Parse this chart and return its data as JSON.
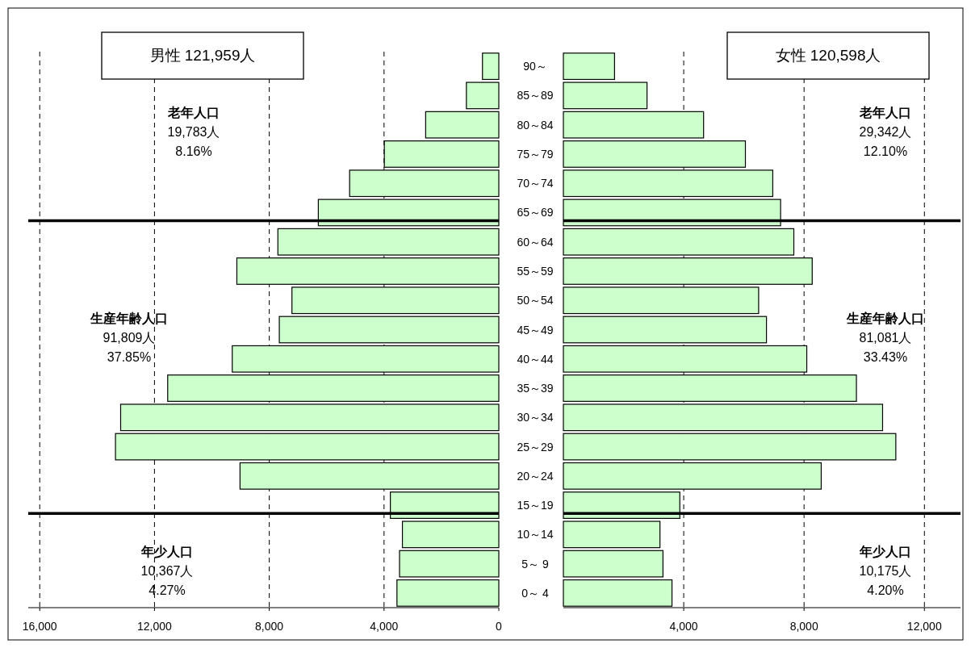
{
  "chart_data": [
    {
      "type": "bar",
      "orientation": "horizontal",
      "title": "男性 121,959人",
      "categories": [
        "90～",
        "85～89",
        "80～84",
        "75～79",
        "70～74",
        "65～69",
        "60～64",
        "55～59",
        "50～54",
        "45～49",
        "40～44",
        "35～39",
        "30～34",
        "25～29",
        "20～24",
        "15～19",
        "10～14",
        "5～ 9",
        "0～ 4"
      ],
      "values": [
        570,
        1130,
        2550,
        3990,
        5200,
        6290,
        7700,
        9130,
        7210,
        7650,
        9290,
        11540,
        13180,
        13360,
        9020,
        3780,
        3360,
        3460,
        3550
      ],
      "color": "#ccffcc",
      "xlim": [
        16400,
        0
      ],
      "xticks": [
        {
          "value": 16000,
          "label": "16,000"
        },
        {
          "value": 12000,
          "label": "12,000"
        },
        {
          "value": 8000,
          "label": "8,000"
        },
        {
          "value": 4000,
          "label": "4,000"
        },
        0
      ],
      "grid": "x",
      "tick_labels": "x",
      "ref_lines": [
        {
          "axis": "y",
          "value": "65～69"
        },
        {
          "axis": "y",
          "value": "15～19"
        }
      ],
      "annotations": [
        "老年人口\n19,783人\n8.16%",
        "生産年齢人口\n91,809人\n37.85%",
        "年少人口\n10,367人\n4.27%"
      ]
    },
    {
      "type": "bar",
      "orientation": "horizontal",
      "title": "女性 120,598人",
      "categories": [
        "90～",
        "85～89",
        "80～84",
        "75～79",
        "70～74",
        "65～69",
        "60～64",
        "55～59",
        "50～54",
        "45～49",
        "40～44",
        "35～39",
        "30～34",
        "25～29",
        "20～24",
        "15～19",
        "10～14",
        "5～ 9",
        "0～ 4"
      ],
      "values": [
        1700,
        2780,
        4660,
        6050,
        6960,
        7220,
        7660,
        8270,
        6490,
        6750,
        8090,
        9740,
        10610,
        11050,
        8570,
        3870,
        3210,
        3310,
        3610
      ],
      "color": "#ccffcc",
      "xlim": [
        0,
        13200
      ],
      "xticks": [
        {
          "value": 4000,
          "label": "4,000"
        },
        {
          "value": 8000,
          "label": "8,000"
        },
        {
          "value": 12000,
          "label": "12,000"
        }
      ],
      "grid": "x",
      "ref_lines": [
        {
          "axis": "y",
          "value": "65～69"
        },
        {
          "axis": "y",
          "value": "15～19"
        }
      ],
      "annotations": [
        "老年人口\n29,342人\n12.10%",
        "生産年齢人口\n81,081人\n33.43%",
        "年少人口\n10,175人\n4.20%"
      ]
    }
  ]
}
